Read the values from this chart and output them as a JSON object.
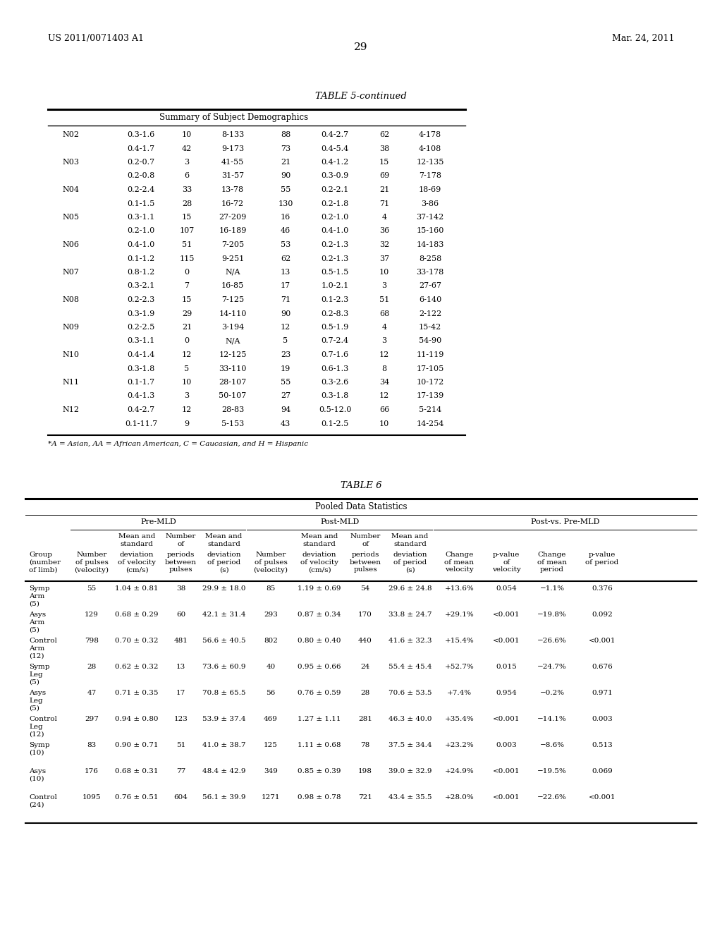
{
  "header_left": "US 2011/0071403 A1",
  "header_right": "Mar. 24, 2011",
  "page_number": "29",
  "table5_title": "TABLE 5-continued",
  "table5_subtitle": "Summary of Subject Demographics",
  "table5_rows": [
    [
      "N02",
      "0.3-1.6",
      "10",
      "8-133",
      "88",
      "0.4-2.7",
      "62",
      "4-178"
    ],
    [
      "",
      "0.4-1.7",
      "42",
      "9-173",
      "73",
      "0.4-5.4",
      "38",
      "4-108"
    ],
    [
      "N03",
      "0.2-0.7",
      "3",
      "41-55",
      "21",
      "0.4-1.2",
      "15",
      "12-135"
    ],
    [
      "",
      "0.2-0.8",
      "6",
      "31-57",
      "90",
      "0.3-0.9",
      "69",
      "7-178"
    ],
    [
      "N04",
      "0.2-2.4",
      "33",
      "13-78",
      "55",
      "0.2-2.1",
      "21",
      "18-69"
    ],
    [
      "",
      "0.1-1.5",
      "28",
      "16-72",
      "130",
      "0.2-1.8",
      "71",
      "3-86"
    ],
    [
      "N05",
      "0.3-1.1",
      "15",
      "27-209",
      "16",
      "0.2-1.0",
      "4",
      "37-142"
    ],
    [
      "",
      "0.2-1.0",
      "107",
      "16-189",
      "46",
      "0.4-1.0",
      "36",
      "15-160"
    ],
    [
      "N06",
      "0.4-1.0",
      "51",
      "7-205",
      "53",
      "0.2-1.3",
      "32",
      "14-183"
    ],
    [
      "",
      "0.1-1.2",
      "115",
      "9-251",
      "62",
      "0.2-1.3",
      "37",
      "8-258"
    ],
    [
      "N07",
      "0.8-1.2",
      "0",
      "N/A",
      "13",
      "0.5-1.5",
      "10",
      "33-178"
    ],
    [
      "",
      "0.3-2.1",
      "7",
      "16-85",
      "17",
      "1.0-2.1",
      "3",
      "27-67"
    ],
    [
      "N08",
      "0.2-2.3",
      "15",
      "7-125",
      "71",
      "0.1-2.3",
      "51",
      "6-140"
    ],
    [
      "",
      "0.3-1.9",
      "29",
      "14-110",
      "90",
      "0.2-8.3",
      "68",
      "2-122"
    ],
    [
      "N09",
      "0.2-2.5",
      "21",
      "3-194",
      "12",
      "0.5-1.9",
      "4",
      "15-42"
    ],
    [
      "",
      "0.3-1.1",
      "0",
      "N/A",
      "5",
      "0.7-2.4",
      "3",
      "54-90"
    ],
    [
      "N10",
      "0.4-1.4",
      "12",
      "12-125",
      "23",
      "0.7-1.6",
      "12",
      "11-119"
    ],
    [
      "",
      "0.3-1.8",
      "5",
      "33-110",
      "19",
      "0.6-1.3",
      "8",
      "17-105"
    ],
    [
      "N11",
      "0.1-1.7",
      "10",
      "28-107",
      "55",
      "0.3-2.6",
      "34",
      "10-172"
    ],
    [
      "",
      "0.4-1.3",
      "3",
      "50-107",
      "27",
      "0.3-1.8",
      "12",
      "17-139"
    ],
    [
      "N12",
      "0.4-2.7",
      "12",
      "28-83",
      "94",
      "0.5-12.0",
      "66",
      "5-214"
    ],
    [
      "",
      "0.1-11.7",
      "9",
      "5-153",
      "43",
      "0.1-2.5",
      "10",
      "14-254"
    ]
  ],
  "table5_footnote": "*A = Asian, AA = African American, C = Caucasian, and H = Hispanic",
  "table6_title": "TABLE 6",
  "table6_subtitle": "Pooled Data Statistics",
  "table6_header1": "Pre-MLD",
  "table6_header2": "Post-MLD",
  "table6_header3": "Post-vs. Pre-MLD",
  "table6_col_headers_line1": [
    "",
    "",
    "Mean and",
    "Number",
    "Mean and",
    "",
    "Mean and",
    "Number",
    "Mean and",
    "",
    "",
    "",
    ""
  ],
  "table6_col_headers_line2": [
    "",
    "",
    "standard",
    "of",
    "standard",
    "",
    "standard",
    "of",
    "standard",
    "",
    "Post-vs. Pre-MLD",
    "",
    ""
  ],
  "table6_col_headers_line3": [
    "Group",
    "Number",
    "deviation",
    "periods",
    "deviation",
    "Number",
    "deviation",
    "periods",
    "deviation",
    "Change",
    "p-value",
    "Change",
    "p-value"
  ],
  "table6_col_headers_line4": [
    "(number",
    "of pulses",
    "of velocity",
    "between",
    "of period",
    "of pulses",
    "of velocity",
    "between",
    "of period",
    "of mean",
    "of",
    "of mean",
    "of period"
  ],
  "table6_col_headers_line5": [
    "of limb)",
    "(velocity)",
    "(cm/s)",
    "pulses",
    "(s)",
    "(velocity)",
    "(cm/s)",
    "pulses",
    "(s)",
    "velocity",
    "velocity",
    "period",
    ""
  ],
  "table6_rows": [
    [
      "Symp\nArm\n(5)",
      "55",
      "1.04 ± 0.81",
      "38",
      "29.9 ± 18.0",
      "85",
      "1.19 ± 0.69",
      "54",
      "29.6 ± 24.8",
      "+13.6%",
      "0.054",
      "−1.1%",
      "0.376"
    ],
    [
      "Asys\nArm\n(5)",
      "129",
      "0.68 ± 0.29",
      "60",
      "42.1 ± 31.4",
      "293",
      "0.87 ± 0.34",
      "170",
      "33.8 ± 24.7",
      "+29.1%",
      "<0.001",
      "−19.8%",
      "0.092"
    ],
    [
      "Control\nArm\n(12)",
      "798",
      "0.70 ± 0.32",
      "481",
      "56.6 ± 40.5",
      "802",
      "0.80 ± 0.40",
      "440",
      "41.6 ± 32.3",
      "+15.4%",
      "<0.001",
      "−26.6%",
      "<0.001"
    ],
    [
      "Symp\nLeg\n(5)",
      "28",
      "0.62 ± 0.32",
      "13",
      "73.6 ± 60.9",
      "40",
      "0.95 ± 0.66",
      "24",
      "55.4 ± 45.4",
      "+52.7%",
      "0.015",
      "−24.7%",
      "0.676"
    ],
    [
      "Asys\nLeg\n(5)",
      "47",
      "0.71 ± 0.35",
      "17",
      "70.8 ± 65.5",
      "56",
      "0.76 ± 0.59",
      "28",
      "70.6 ± 53.5",
      "+7.4%",
      "0.954",
      "−0.2%",
      "0.971"
    ],
    [
      "Control\nLeg\n(12)",
      "297",
      "0.94 ± 0.80",
      "123",
      "53.9 ± 37.4",
      "469",
      "1.27 ± 1.11",
      "281",
      "46.3 ± 40.0",
      "+35.4%",
      "<0.001",
      "−14.1%",
      "0.003"
    ],
    [
      "Symp\n(10)",
      "83",
      "0.90 ± 0.71",
      "51",
      "41.0 ± 38.7",
      "125",
      "1.11 ± 0.68",
      "78",
      "37.5 ± 34.4",
      "+23.2%",
      "0.003",
      "−8.6%",
      "0.513"
    ],
    [
      "Asys\n(10)",
      "176",
      "0.68 ± 0.31",
      "77",
      "48.4 ± 42.9",
      "349",
      "0.85 ± 0.39",
      "198",
      "39.0 ± 32.9",
      "+24.9%",
      "<0.001",
      "−19.5%",
      "0.069"
    ],
    [
      "Control\n(24)",
      "1095",
      "0.76 ± 0.51",
      "604",
      "56.1 ± 39.9",
      "1271",
      "0.98 ± 0.78",
      "721",
      "43.4 ± 35.5",
      "+28.0%",
      "<0.001",
      "−22.6%",
      "<0.001"
    ]
  ],
  "bg_color": "#ffffff",
  "text_color": "#000000"
}
